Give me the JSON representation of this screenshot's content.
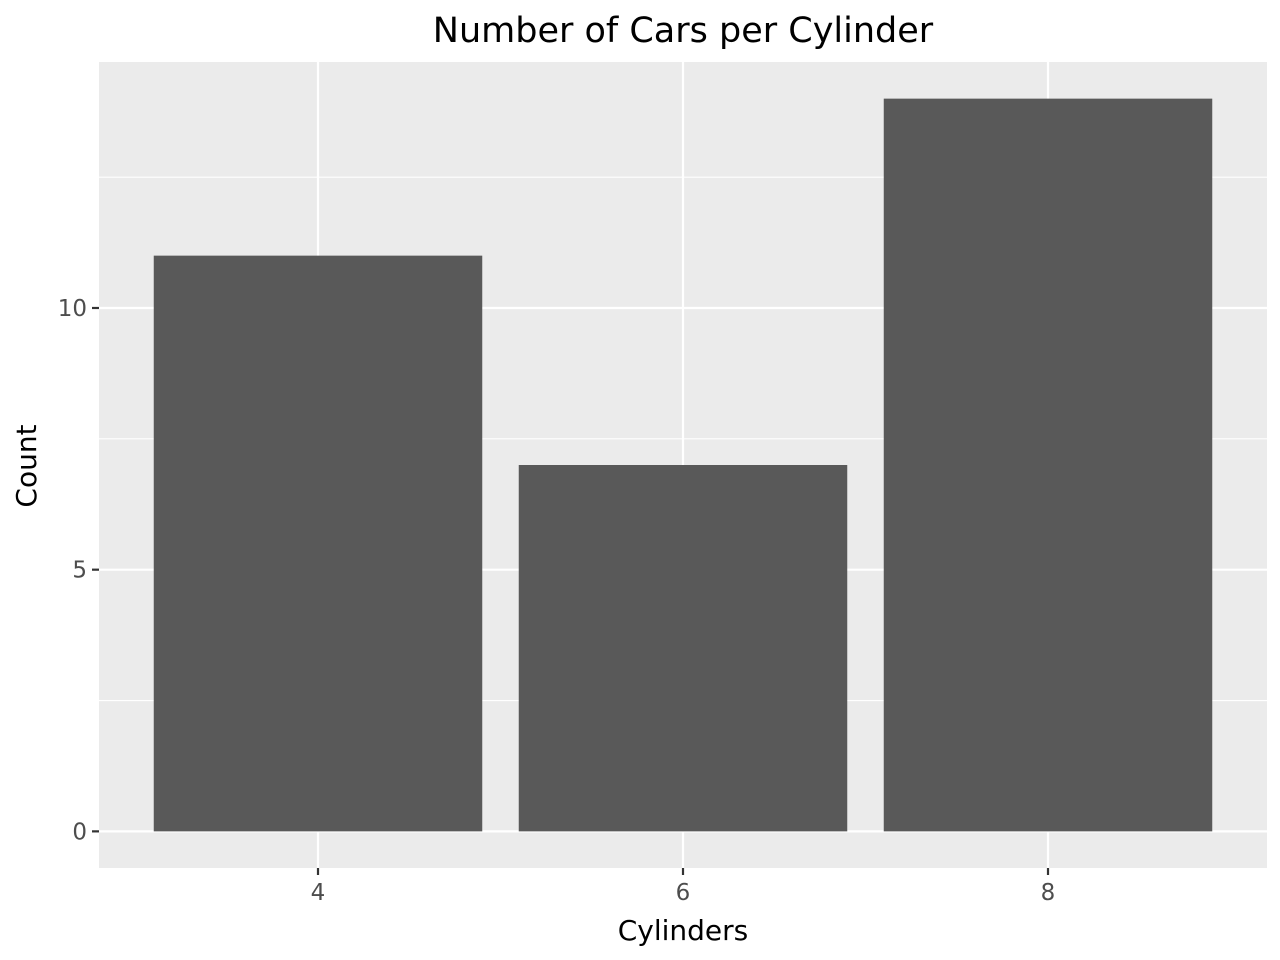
{
  "chart_data": {
    "type": "bar",
    "title": "Number of Cars per Cylinder",
    "xlabel": "Cylinders",
    "ylabel": "Count",
    "categories": [
      4,
      6,
      8
    ],
    "values": [
      11,
      7,
      14
    ],
    "xlim": [
      2.8,
      9.2
    ],
    "ylim": [
      -0.7,
      14.7
    ],
    "x_ticks": [
      4,
      6,
      8
    ],
    "y_ticks": [
      0,
      5,
      10
    ],
    "y_minor_ticks": [
      2.5,
      7.5,
      12.5
    ],
    "bar_width": 1.8,
    "grid": true,
    "legend": "none",
    "colors": {
      "bar": "#595959",
      "panel": "#ebebeb",
      "grid": "#ffffff",
      "tick_label": "#4d4d4d",
      "tick_mark": "#333333"
    }
  }
}
